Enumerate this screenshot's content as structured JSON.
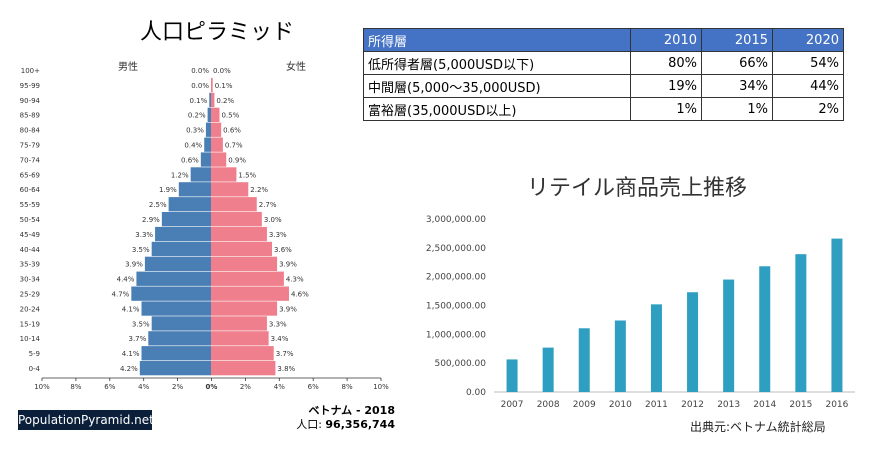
{
  "pyramid": {
    "title": "人口ピラミッド",
    "male_label": "男性",
    "female_label": "女性",
    "badge": "PopulationPyramid.net",
    "country_year": "ベトナム - 2018",
    "population_label": "人口: ",
    "population_value": "96,356,744",
    "colors": {
      "male": "#4a7fb5",
      "female": "#ef7f8c"
    }
  },
  "income_table": {
    "headers": [
      "所得層",
      "2010",
      "2015",
      "2020"
    ],
    "rows": [
      [
        "低所得者層(5,000USD以下)",
        "80%",
        "66%",
        "54%"
      ],
      [
        "中間層(5,000〜35,000USD)",
        "19%",
        "34%",
        "44%"
      ],
      [
        "富裕層(35,000USD以上)",
        "1%",
        "1%",
        "2%"
      ]
    ]
  },
  "retail": {
    "title": "リテイル商品売上推移",
    "source": "出典元:ベトナム統計総局",
    "bar_color": "#2e9fc0"
  },
  "chart_data": [
    {
      "type": "bar",
      "orientation": "horizontal-pyramid",
      "title": "人口ピラミッド",
      "categories": [
        "100+",
        "95-99",
        "90-94",
        "85-89",
        "80-84",
        "75-79",
        "70-74",
        "65-69",
        "60-64",
        "55-59",
        "50-54",
        "45-49",
        "40-44",
        "35-39",
        "30-34",
        "25-29",
        "20-24",
        "15-19",
        "10-14",
        "5-9",
        "0-4"
      ],
      "series": [
        {
          "name": "男性",
          "values": [
            0.0,
            0.0,
            0.1,
            0.2,
            0.3,
            0.4,
            0.6,
            1.2,
            1.9,
            2.5,
            2.9,
            3.3,
            3.5,
            3.9,
            4.4,
            4.7,
            4.1,
            3.5,
            3.7,
            4.1,
            4.2
          ]
        },
        {
          "name": "女性",
          "values": [
            0.0,
            0.1,
            0.2,
            0.5,
            0.6,
            0.7,
            0.9,
            1.5,
            2.2,
            2.7,
            3.0,
            3.3,
            3.6,
            3.9,
            4.3,
            4.6,
            3.9,
            3.3,
            3.4,
            3.7,
            3.8
          ]
        }
      ],
      "xticks": [
        "10%",
        "8%",
        "6%",
        "4%",
        "2%",
        "0%",
        "2%",
        "4%",
        "6%",
        "8%",
        "10%"
      ],
      "xlim": [
        -10,
        10
      ]
    },
    {
      "type": "bar",
      "title": "リテイル商品売上推移",
      "categories": [
        "2007",
        "2008",
        "2009",
        "2010",
        "2011",
        "2012",
        "2013",
        "2014",
        "2015",
        "2016"
      ],
      "values": [
        565000,
        770000,
        1105000,
        1240000,
        1520000,
        1730000,
        1950000,
        2180000,
        2390000,
        2660000
      ],
      "yticks": [
        "0.00",
        "500,000.00",
        "1,000,000.00",
        "1,500,000.00",
        "2,000,000.00",
        "2,500,000.00",
        "3,000,000.00"
      ],
      "ylim": [
        0,
        3000000
      ],
      "grid": false
    }
  ]
}
